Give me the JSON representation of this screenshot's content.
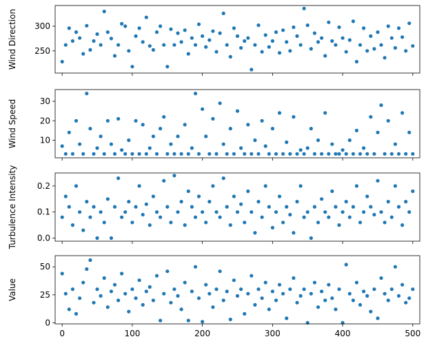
{
  "colors": {
    "marker": "#1f77b4",
    "axes": "#000000",
    "background": "#ffffff"
  },
  "chart_data": [
    {
      "type": "scatter",
      "ylabel": "Wind Direction",
      "xlim": [
        -10,
        510
      ],
      "ylim": [
        205,
        342
      ],
      "x_ticks": [
        0,
        100,
        200,
        300,
        400,
        500
      ],
      "x_tick_labels_visible": false,
      "y_ticks": [
        250,
        300
      ],
      "y_tick_labels": [
        "250",
        "300"
      ],
      "series": [
        {
          "x": [
            0,
            5,
            10,
            15,
            20,
            25,
            30,
            35,
            40,
            45,
            50,
            55,
            60,
            65,
            70,
            75,
            80,
            85,
            90,
            95,
            100,
            105,
            110,
            115,
            120,
            125,
            130,
            135,
            140,
            145,
            150,
            155,
            160,
            165,
            170,
            175,
            180,
            185,
            190,
            195,
            200,
            205,
            210,
            215,
            220,
            225,
            230,
            235,
            240,
            245,
            250,
            255,
            260,
            265,
            270,
            275,
            280,
            285,
            290,
            295,
            300,
            305,
            310,
            315,
            320,
            325,
            330,
            335,
            340,
            345,
            350,
            355,
            360,
            365,
            370,
            375,
            380,
            385,
            390,
            395,
            400,
            405,
            410,
            415,
            420,
            425,
            430,
            435,
            440,
            445,
            450,
            455,
            460,
            465,
            470,
            475,
            480,
            485,
            490,
            495,
            500
          ],
          "y": [
            228,
            262,
            296,
            270,
            288,
            276,
            244,
            301,
            252,
            270,
            284,
            262,
            330,
            288,
            275,
            240,
            262,
            305,
            300,
            250,
            218,
            280,
            296,
            268,
            318,
            260,
            252,
            288,
            300,
            262,
            218,
            294,
            262,
            286,
            268,
            292,
            244,
            276,
            262,
            304,
            280,
            258,
            272,
            290,
            248,
            286,
            326,
            262,
            238,
            296,
            280,
            256,
            270,
            276,
            212,
            262,
            302,
            248,
            282,
            258,
            270,
            288,
            246,
            292,
            268,
            250,
            298,
            280,
            262,
            336,
            302,
            254,
            286,
            268,
            276,
            240,
            308,
            270,
            262,
            298,
            276,
            248,
            272,
            310,
            228,
            262,
            296,
            250,
            280,
            254,
            288,
            262,
            236,
            300,
            276,
            256,
            296,
            278,
            250,
            306,
            260
          ]
        }
      ]
    },
    {
      "type": "scatter",
      "ylabel": "Wind Speed",
      "xlim": [
        -10,
        510
      ],
      "ylim": [
        1,
        36
      ],
      "x_ticks": [
        0,
        100,
        200,
        300,
        400,
        500
      ],
      "x_tick_labels_visible": false,
      "y_ticks": [
        10,
        20,
        30
      ],
      "y_tick_labels": [
        "10",
        "20",
        "30"
      ],
      "series": [
        {
          "x": [
            0,
            5,
            10,
            15,
            20,
            25,
            30,
            35,
            40,
            45,
            50,
            55,
            60,
            65,
            70,
            75,
            80,
            85,
            90,
            95,
            100,
            105,
            110,
            115,
            120,
            125,
            130,
            135,
            140,
            145,
            150,
            155,
            160,
            165,
            170,
            175,
            180,
            185,
            190,
            195,
            200,
            205,
            210,
            215,
            220,
            225,
            230,
            235,
            240,
            245,
            250,
            255,
            260,
            265,
            270,
            275,
            280,
            285,
            290,
            295,
            300,
            305,
            310,
            315,
            320,
            325,
            330,
            335,
            340,
            345,
            350,
            355,
            360,
            365,
            370,
            375,
            380,
            385,
            390,
            395,
            400,
            405,
            410,
            415,
            420,
            425,
            430,
            435,
            440,
            445,
            450,
            455,
            460,
            465,
            470,
            475,
            480,
            485,
            490,
            495,
            500
          ],
          "y": [
            7,
            3,
            14,
            3,
            20,
            8,
            3,
            34,
            16,
            3,
            6,
            12,
            3,
            20,
            8,
            3,
            21,
            5,
            3,
            10,
            3,
            20,
            3,
            18,
            3,
            6,
            12,
            3,
            16,
            22,
            3,
            8,
            3,
            12,
            3,
            18,
            3,
            6,
            34,
            3,
            26,
            12,
            3,
            21,
            3,
            29,
            8,
            3,
            16,
            3,
            25,
            6,
            3,
            18,
            3,
            10,
            3,
            20,
            7,
            3,
            16,
            3,
            24,
            3,
            9,
            3,
            22,
            3,
            5,
            3,
            6,
            16,
            3,
            10,
            3,
            24,
            3,
            8,
            3,
            3,
            5,
            3,
            10,
            3,
            15,
            3,
            6,
            3,
            22,
            3,
            14,
            28,
            3,
            20,
            3,
            8,
            3,
            24,
            3,
            14,
            3
          ]
        }
      ]
    },
    {
      "type": "scatter",
      "ylabel": "Turbulence Intensity",
      "xlim": [
        -10,
        510
      ],
      "ylim": [
        -0.012,
        0.25
      ],
      "x_ticks": [
        0,
        100,
        200,
        300,
        400,
        500
      ],
      "x_tick_labels_visible": false,
      "y_ticks": [
        0.0,
        0.1,
        0.2
      ],
      "y_tick_labels": [
        "0.0",
        "0.1",
        "0.2"
      ],
      "series": [
        {
          "x": [
            0,
            5,
            10,
            15,
            20,
            25,
            30,
            35,
            40,
            45,
            50,
            55,
            60,
            65,
            70,
            75,
            80,
            85,
            90,
            95,
            100,
            105,
            110,
            115,
            120,
            125,
            130,
            135,
            140,
            145,
            150,
            155,
            160,
            165,
            170,
            175,
            180,
            185,
            190,
            195,
            200,
            205,
            210,
            215,
            220,
            225,
            230,
            235,
            240,
            245,
            250,
            255,
            260,
            265,
            270,
            275,
            280,
            285,
            290,
            295,
            300,
            305,
            310,
            315,
            320,
            325,
            330,
            335,
            340,
            345,
            350,
            355,
            360,
            365,
            370,
            375,
            380,
            385,
            390,
            395,
            400,
            405,
            410,
            415,
            420,
            425,
            430,
            435,
            440,
            445,
            450,
            455,
            460,
            465,
            470,
            475,
            480,
            485,
            490,
            495,
            500
          ],
          "y": [
            0.08,
            0.16,
            0.12,
            0.05,
            0.2,
            0.1,
            0.03,
            0.14,
            0.08,
            0.12,
            0.0,
            0.1,
            0.06,
            0.15,
            0.0,
            0.12,
            0.23,
            0.08,
            0.1,
            0.14,
            0.06,
            0.12,
            0.2,
            0.09,
            0.13,
            0.05,
            0.16,
            0.1,
            0.08,
            0.22,
            0.12,
            0.06,
            0.24,
            0.1,
            0.14,
            0.05,
            0.18,
            0.12,
            0.08,
            0.16,
            0.1,
            0.06,
            0.14,
            0.2,
            0.1,
            0.08,
            0.23,
            0.12,
            0.05,
            0.16,
            0.1,
            0.13,
            0.06,
            0.18,
            0.1,
            0.02,
            0.14,
            0.08,
            0.2,
            0.12,
            0.04,
            0.1,
            0.16,
            0.06,
            0.12,
            0.09,
            0.02,
            0.14,
            0.2,
            0.08,
            0.1,
            0.0,
            0.12,
            0.06,
            0.15,
            0.1,
            0.08,
            0.18,
            0.12,
            0.05,
            0.1,
            0.14,
            0.08,
            0.12,
            0.2,
            0.06,
            0.1,
            0.16,
            0.12,
            0.09,
            0.22,
            0.1,
            0.06,
            0.14,
            0.08,
            0.2,
            0.12,
            0.05,
            0.14,
            0.1,
            0.18
          ]
        }
      ]
    },
    {
      "type": "scatter",
      "ylabel": "Value",
      "xlim": [
        -10,
        510
      ],
      "ylim": [
        -1,
        60
      ],
      "x_ticks": [
        0,
        100,
        200,
        300,
        400,
        500
      ],
      "x_tick_labels": [
        "0",
        "100",
        "200",
        "300",
        "400",
        "500"
      ],
      "y_ticks": [
        0,
        25,
        50
      ],
      "y_tick_labels": [
        "0",
        "25",
        "50"
      ],
      "series": [
        {
          "x": [
            0,
            5,
            10,
            15,
            20,
            25,
            30,
            35,
            40,
            45,
            50,
            55,
            60,
            65,
            70,
            75,
            80,
            85,
            90,
            95,
            100,
            105,
            110,
            115,
            120,
            125,
            130,
            135,
            140,
            145,
            150,
            155,
            160,
            165,
            170,
            175,
            180,
            185,
            190,
            195,
            200,
            205,
            210,
            215,
            220,
            225,
            230,
            235,
            240,
            245,
            250,
            255,
            260,
            265,
            270,
            275,
            280,
            285,
            290,
            295,
            300,
            305,
            310,
            315,
            320,
            325,
            330,
            335,
            340,
            345,
            350,
            355,
            360,
            365,
            370,
            375,
            380,
            385,
            390,
            395,
            400,
            405,
            410,
            415,
            420,
            425,
            430,
            435,
            440,
            445,
            450,
            455,
            460,
            465,
            470,
            475,
            480,
            485,
            490,
            495,
            500
          ],
          "y": [
            44,
            26,
            12,
            30,
            8,
            22,
            36,
            48,
            56,
            18,
            30,
            24,
            40,
            14,
            28,
            34,
            20,
            44,
            26,
            10,
            30,
            22,
            38,
            16,
            28,
            32,
            20,
            42,
            2,
            26,
            46,
            18,
            30,
            24,
            12,
            36,
            2,
            28,
            50,
            22,
            1,
            34,
            26,
            14,
            30,
            46,
            20,
            28,
            3,
            38,
            24,
            30,
            8,
            26,
            42,
            16,
            30,
            22,
            36,
            12,
            28,
            20,
            34,
            26,
            4,
            30,
            40,
            18,
            24,
            30,
            0,
            26,
            36,
            14,
            28,
            20,
            34,
            22,
            12,
            30,
            0,
            52,
            26,
            20,
            36,
            16,
            28,
            24,
            10,
            30,
            4,
            40,
            26,
            20,
            30,
            50,
            24,
            34,
            18,
            22,
            30
          ]
        }
      ]
    }
  ]
}
